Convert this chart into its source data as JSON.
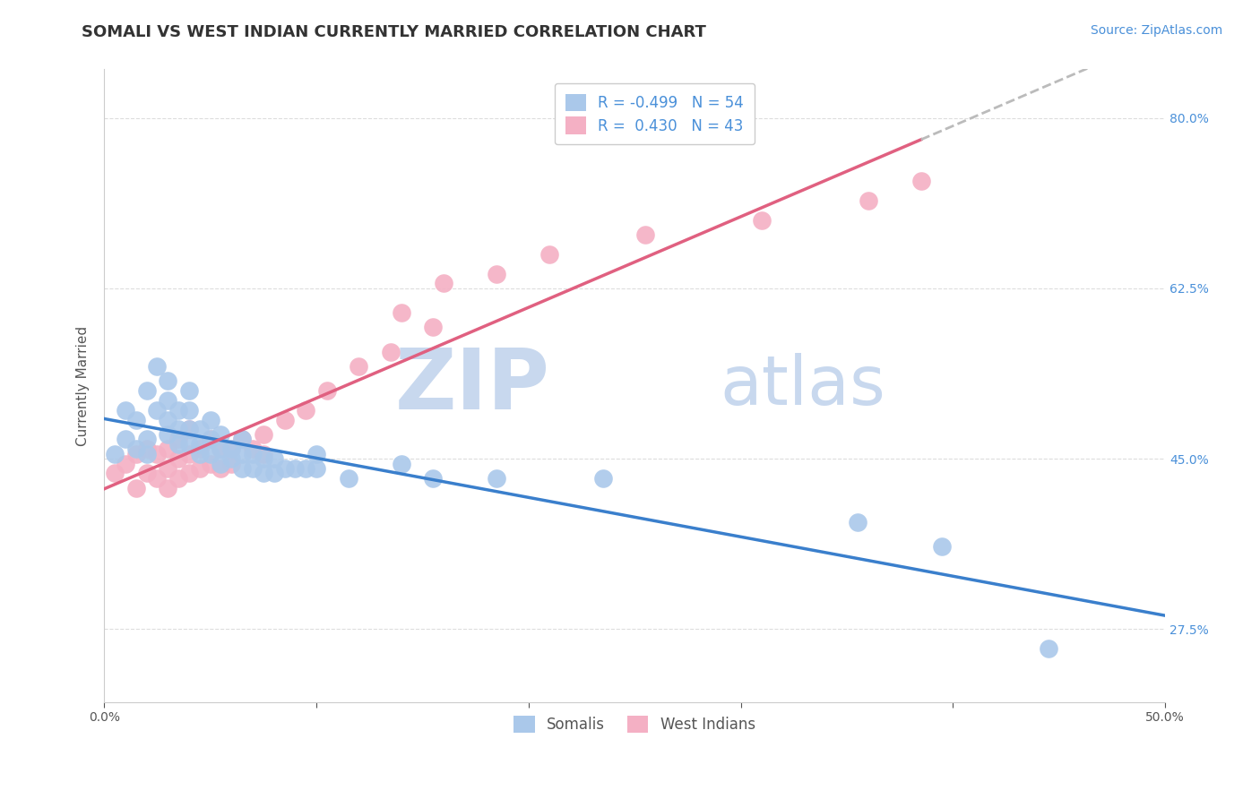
{
  "title": "SOMALI VS WEST INDIAN CURRENTLY MARRIED CORRELATION CHART",
  "source_text": "Source: ZipAtlas.com",
  "ylabel": "Currently Married",
  "xlim": [
    0.0,
    0.5
  ],
  "ylim": [
    0.2,
    0.85
  ],
  "x_tick_positions": [
    0.0,
    0.1,
    0.2,
    0.3,
    0.4,
    0.5
  ],
  "x_tick_labels": [
    "0.0%",
    "",
    "",
    "",
    "",
    "50.0%"
  ],
  "y_tick_positions": [
    0.275,
    0.45,
    0.625,
    0.8
  ],
  "y_tick_labels": [
    "27.5%",
    "45.0%",
    "62.5%",
    "80.0%"
  ],
  "somali_color": "#aac8ea",
  "west_indian_color": "#f4b0c4",
  "somali_line_color": "#3a7fcc",
  "west_indian_line_color": "#e06080",
  "trend_extend_color": "#bbbbbb",
  "R_somali": -0.499,
  "N_somali": 54,
  "R_west_indian": 0.43,
  "N_west_indian": 43,
  "legend_label_somali": "Somalis",
  "legend_label_west_indian": "West Indians",
  "watermark_zip": "ZIP",
  "watermark_atlas": "atlas",
  "watermark_color": "#c8d8ee",
  "somali_x": [
    0.005,
    0.01,
    0.01,
    0.015,
    0.015,
    0.02,
    0.02,
    0.02,
    0.025,
    0.025,
    0.03,
    0.03,
    0.03,
    0.03,
    0.035,
    0.035,
    0.035,
    0.04,
    0.04,
    0.04,
    0.04,
    0.045,
    0.045,
    0.045,
    0.05,
    0.05,
    0.05,
    0.055,
    0.055,
    0.055,
    0.06,
    0.06,
    0.065,
    0.065,
    0.065,
    0.07,
    0.07,
    0.075,
    0.075,
    0.08,
    0.08,
    0.085,
    0.09,
    0.095,
    0.1,
    0.1,
    0.115,
    0.14,
    0.155,
    0.185,
    0.235,
    0.355,
    0.395,
    0.445
  ],
  "somali_y": [
    0.455,
    0.47,
    0.5,
    0.46,
    0.49,
    0.455,
    0.47,
    0.52,
    0.5,
    0.545,
    0.475,
    0.49,
    0.51,
    0.53,
    0.465,
    0.48,
    0.5,
    0.465,
    0.48,
    0.5,
    0.52,
    0.455,
    0.465,
    0.48,
    0.455,
    0.47,
    0.49,
    0.445,
    0.46,
    0.475,
    0.45,
    0.46,
    0.44,
    0.455,
    0.47,
    0.44,
    0.455,
    0.435,
    0.45,
    0.435,
    0.45,
    0.44,
    0.44,
    0.44,
    0.44,
    0.455,
    0.43,
    0.445,
    0.43,
    0.43,
    0.43,
    0.385,
    0.36,
    0.255
  ],
  "west_indian_x": [
    0.005,
    0.01,
    0.015,
    0.015,
    0.02,
    0.02,
    0.025,
    0.025,
    0.03,
    0.03,
    0.03,
    0.035,
    0.035,
    0.035,
    0.04,
    0.04,
    0.04,
    0.045,
    0.045,
    0.05,
    0.05,
    0.055,
    0.055,
    0.06,
    0.06,
    0.065,
    0.07,
    0.075,
    0.075,
    0.085,
    0.095,
    0.105,
    0.12,
    0.135,
    0.14,
    0.155,
    0.16,
    0.185,
    0.21,
    0.255,
    0.31,
    0.36,
    0.385
  ],
  "west_indian_y": [
    0.435,
    0.445,
    0.42,
    0.455,
    0.435,
    0.46,
    0.43,
    0.455,
    0.42,
    0.44,
    0.46,
    0.43,
    0.45,
    0.47,
    0.435,
    0.455,
    0.48,
    0.44,
    0.46,
    0.445,
    0.47,
    0.44,
    0.46,
    0.445,
    0.46,
    0.47,
    0.46,
    0.455,
    0.475,
    0.49,
    0.5,
    0.52,
    0.545,
    0.56,
    0.6,
    0.585,
    0.63,
    0.64,
    0.66,
    0.68,
    0.695,
    0.715,
    0.735
  ],
  "grid_color": "#dddddd",
  "background_color": "#ffffff",
  "title_fontsize": 13,
  "label_fontsize": 11,
  "tick_fontsize": 10,
  "legend_fontsize": 12,
  "source_fontsize": 10,
  "tick_color": "#4a90d9",
  "label_color": "#555555",
  "title_color": "#333333",
  "source_color": "#4a90d9"
}
